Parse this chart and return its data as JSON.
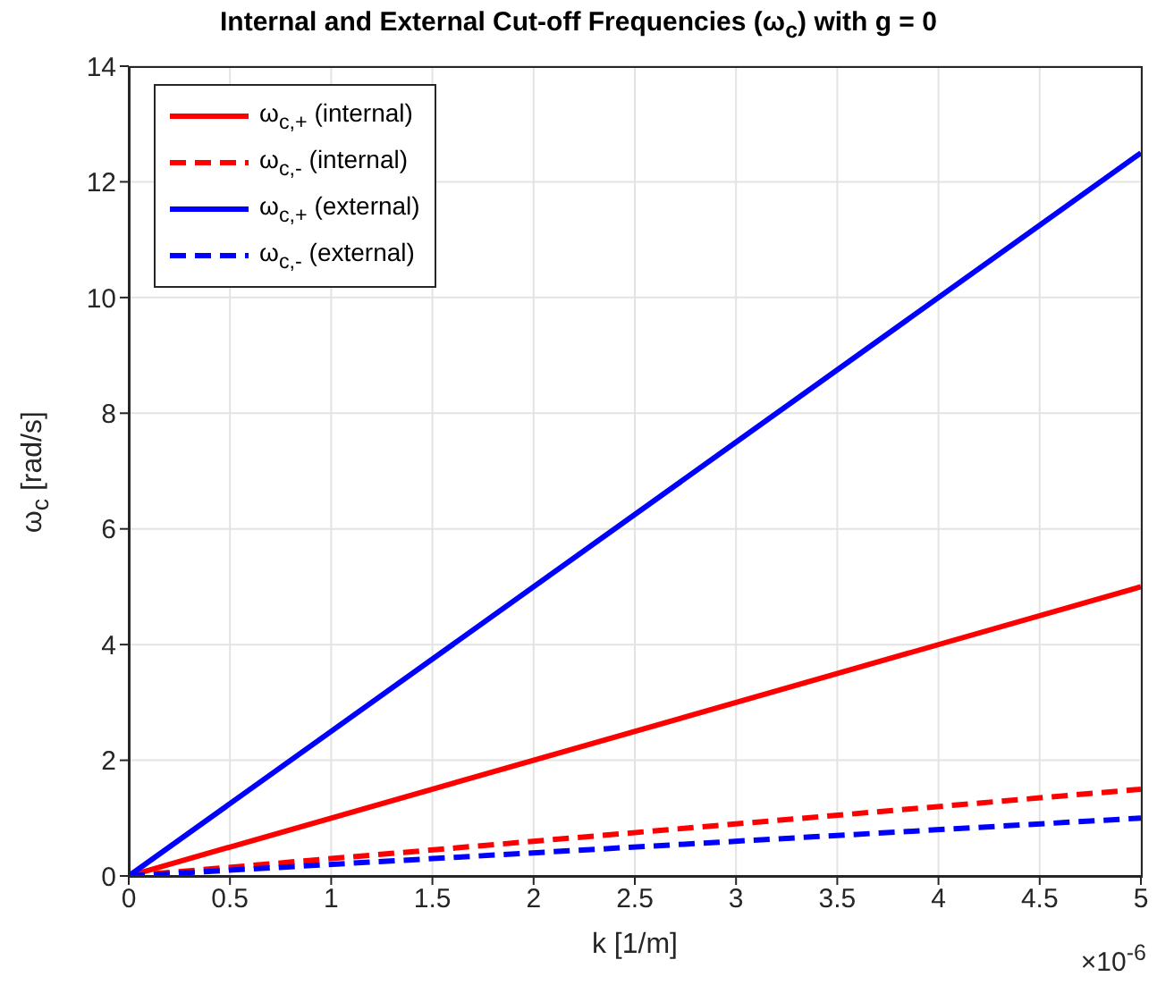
{
  "chart_data": {
    "type": "line",
    "title": "Internal and External Cut-off Frequencies (ω$_{c}$) with g = 0",
    "xlabel": "k [1/m]",
    "ylabel": "ω$_{c}$ [rad/s]",
    "x": [
      0,
      5
    ],
    "series": [
      {
        "name": "ω$_{c,+}$ (internal)",
        "color": "#ff0000",
        "values": [
          0,
          5
        ],
        "line_style": "solid"
      },
      {
        "name": "ω$_{c,-}$ (internal)",
        "color": "#ff0000",
        "values": [
          0,
          1.5
        ],
        "line_style": "dashed"
      },
      {
        "name": "ω$_{c,+}$ (external)",
        "color": "#0000ff",
        "values": [
          0,
          12.5
        ],
        "line_style": "solid"
      },
      {
        "name": "ω$_{c,-}$ (external)",
        "color": "#0000ff",
        "values": [
          0,
          1
        ],
        "line_style": "dashed"
      }
    ],
    "xlim": [
      0,
      5
    ],
    "xticks": [
      0,
      0.5,
      1,
      1.5,
      2,
      2.5,
      3,
      3.5,
      4,
      4.5,
      5
    ],
    "ylim": [
      0,
      14
    ],
    "yticks": [
      0,
      2,
      4,
      6,
      8,
      10,
      12,
      14
    ],
    "annotations": [
      "×10$^{-6}$"
    ],
    "grid": true,
    "legend": "top left",
    "marker": "none"
  }
}
